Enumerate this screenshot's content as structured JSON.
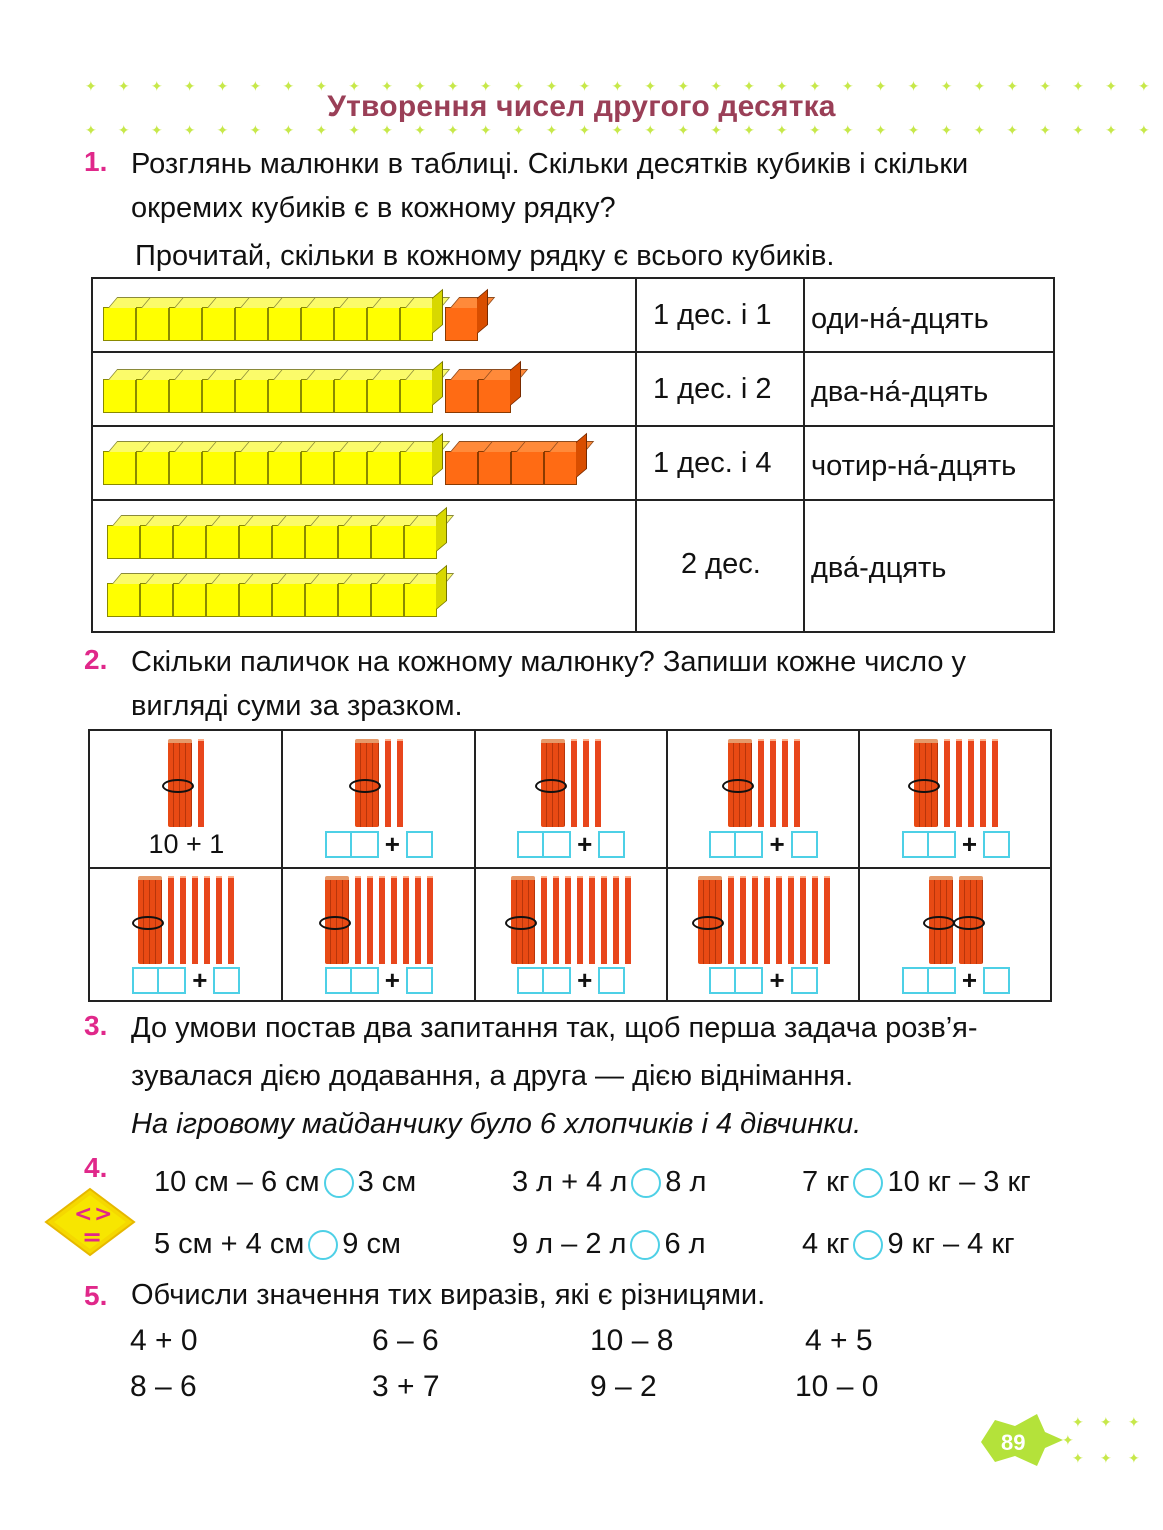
{
  "page": {
    "title": "Утворення чисел другого десятка",
    "page_number": "89"
  },
  "task1": {
    "number": "1.",
    "text_line1": "Розглянь малюнки в таблиці. Скільки десятків кубиків і скільки",
    "text_line2": "окремих кубиків є в кожному рядку?",
    "text_line3": "Прочитай, скільки в кожному рядку є всього кубиків.",
    "rows": [
      {
        "tens": 1,
        "units": 1,
        "label": "1 дес. і 1",
        "word": "оди-на́-дцять"
      },
      {
        "tens": 1,
        "units": 2,
        "label": "1 дес. і 2",
        "word": "два-на́-дцять"
      },
      {
        "tens": 1,
        "units": 4,
        "label": "1 дес. і 4",
        "word": "чотир-на́-дцять"
      },
      {
        "tens": 2,
        "units": 0,
        "label": "2 дес.",
        "word": "два́-дцять"
      }
    ]
  },
  "task2": {
    "number": "2.",
    "text_line1": "Скільки паличок на кожному малюнку? Запиши кожне число у",
    "text_line2": "вигляді суми за зразком.",
    "example": "10 + 1",
    "plus": "+",
    "cells": [
      {
        "bundles": 1,
        "sticks": 1
      },
      {
        "bundles": 1,
        "sticks": 2
      },
      {
        "bundles": 1,
        "sticks": 3
      },
      {
        "bundles": 1,
        "sticks": 4
      },
      {
        "bundles": 1,
        "sticks": 5
      },
      {
        "bundles": 1,
        "sticks": 6
      },
      {
        "bundles": 1,
        "sticks": 7
      },
      {
        "bundles": 1,
        "sticks": 8
      },
      {
        "bundles": 1,
        "sticks": 9
      },
      {
        "bundles": 2,
        "sticks": 0
      }
    ]
  },
  "task3": {
    "number": "3.",
    "text_line1": "До умови постав два запитання так, щоб перша задача розв’я-",
    "text_line2": "зувалася дією додавання, а друга — дією віднімання.",
    "condition": "На ігровому майданчику було 6 хлопчиків і 4 дівчинки."
  },
  "task4": {
    "number": "4.",
    "badge_symbols": [
      "<",
      ">",
      "="
    ],
    "items": [
      {
        "left": "10 см – 6 см",
        "right": "3 см"
      },
      {
        "left": "3 л + 4 л",
        "right": "8 л"
      },
      {
        "left": "7 кг",
        "right": "10 кг – 3 кг"
      },
      {
        "left": "5 см + 4 см",
        "right": "9 см"
      },
      {
        "left": "9 л – 2 л",
        "right": "6 л"
      },
      {
        "left": "4 кг",
        "right": "9 кг – 4 кг"
      }
    ]
  },
  "task5": {
    "number": "5.",
    "text": "Обчисли значення тих виразів, які є різницями.",
    "expressions": [
      "4 + 0",
      "6 – 6",
      "10 – 8",
      "4 + 5",
      "8 – 6",
      "3 + 7",
      "9 – 2",
      "10 – 0"
    ]
  },
  "colors": {
    "title": "#9a3f57",
    "task_number": "#e0288a",
    "ten_cube": "#ffff00",
    "unit_cube": "#ff6b14",
    "stick": "#e8461c",
    "answer_box": "#4ed0e6",
    "stars": "#c7e84a"
  }
}
